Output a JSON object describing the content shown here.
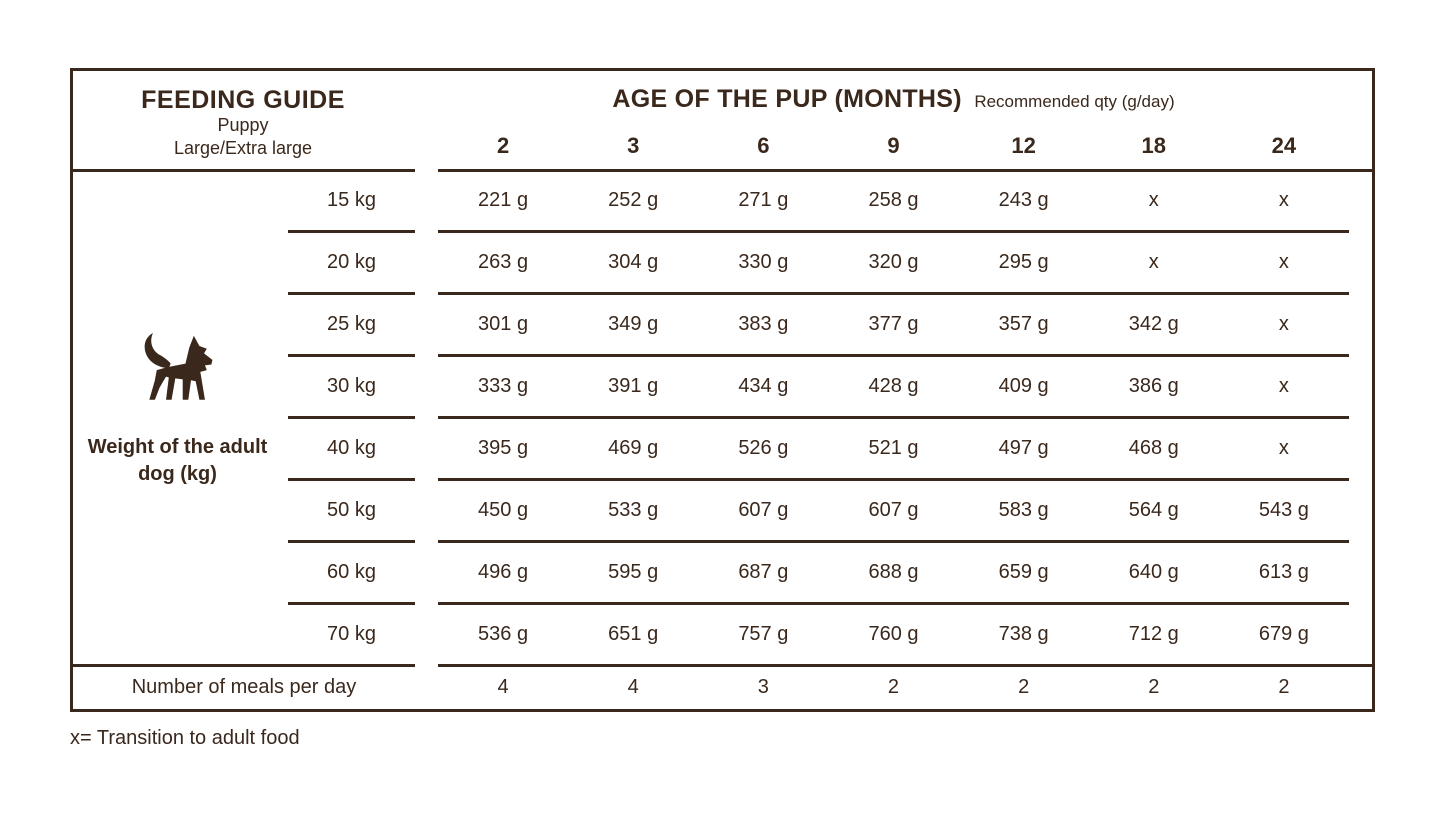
{
  "header": {
    "title": "FEEDING GUIDE",
    "subtitle_line1": "Puppy",
    "subtitle_line2": "Large/Extra large",
    "age_title": "AGE OF THE PUP (MONTHS)",
    "age_subtitle": "Recommended qty (g/day)",
    "months": [
      "2",
      "3",
      "6",
      "9",
      "12",
      "18",
      "24"
    ]
  },
  "left_panel": {
    "icon": "dog-silhouette-icon",
    "weight_label": "Weight of the adult dog (kg)"
  },
  "table": {
    "rows": [
      {
        "weight": "15 kg",
        "values": [
          "221 g",
          "252 g",
          "271 g",
          "258 g",
          "243 g",
          "x",
          "x"
        ]
      },
      {
        "weight": "20 kg",
        "values": [
          "263 g",
          "304 g",
          "330 g",
          "320 g",
          "295 g",
          "x",
          "x"
        ]
      },
      {
        "weight": "25 kg",
        "values": [
          "301 g",
          "349 g",
          "383 g",
          "377 g",
          "357 g",
          "342 g",
          "x"
        ]
      },
      {
        "weight": "30 kg",
        "values": [
          "333 g",
          "391 g",
          "434 g",
          "428 g",
          "409 g",
          "386 g",
          "x"
        ]
      },
      {
        "weight": "40 kg",
        "values": [
          "395 g",
          "469 g",
          "526 g",
          "521 g",
          "497 g",
          "468 g",
          "x"
        ]
      },
      {
        "weight": "50 kg",
        "values": [
          "450 g",
          "533 g",
          "607 g",
          "607 g",
          "583 g",
          "564 g",
          "543 g"
        ]
      },
      {
        "weight": "60 kg",
        "values": [
          "496 g",
          "595 g",
          "687 g",
          "688 g",
          "659 g",
          "640 g",
          "613 g"
        ]
      },
      {
        "weight": "70 kg",
        "values": [
          "536 g",
          "651 g",
          "757 g",
          "760 g",
          "738 g",
          "712 g",
          "679 g"
        ]
      }
    ],
    "meals_label": "Number of meals per day",
    "meals_values": [
      "4",
      "4",
      "3",
      "2",
      "2",
      "2",
      "2"
    ]
  },
  "footnote": "x= Transition to adult food",
  "colors": {
    "ink": "#3a281c",
    "background": "#ffffff"
  }
}
